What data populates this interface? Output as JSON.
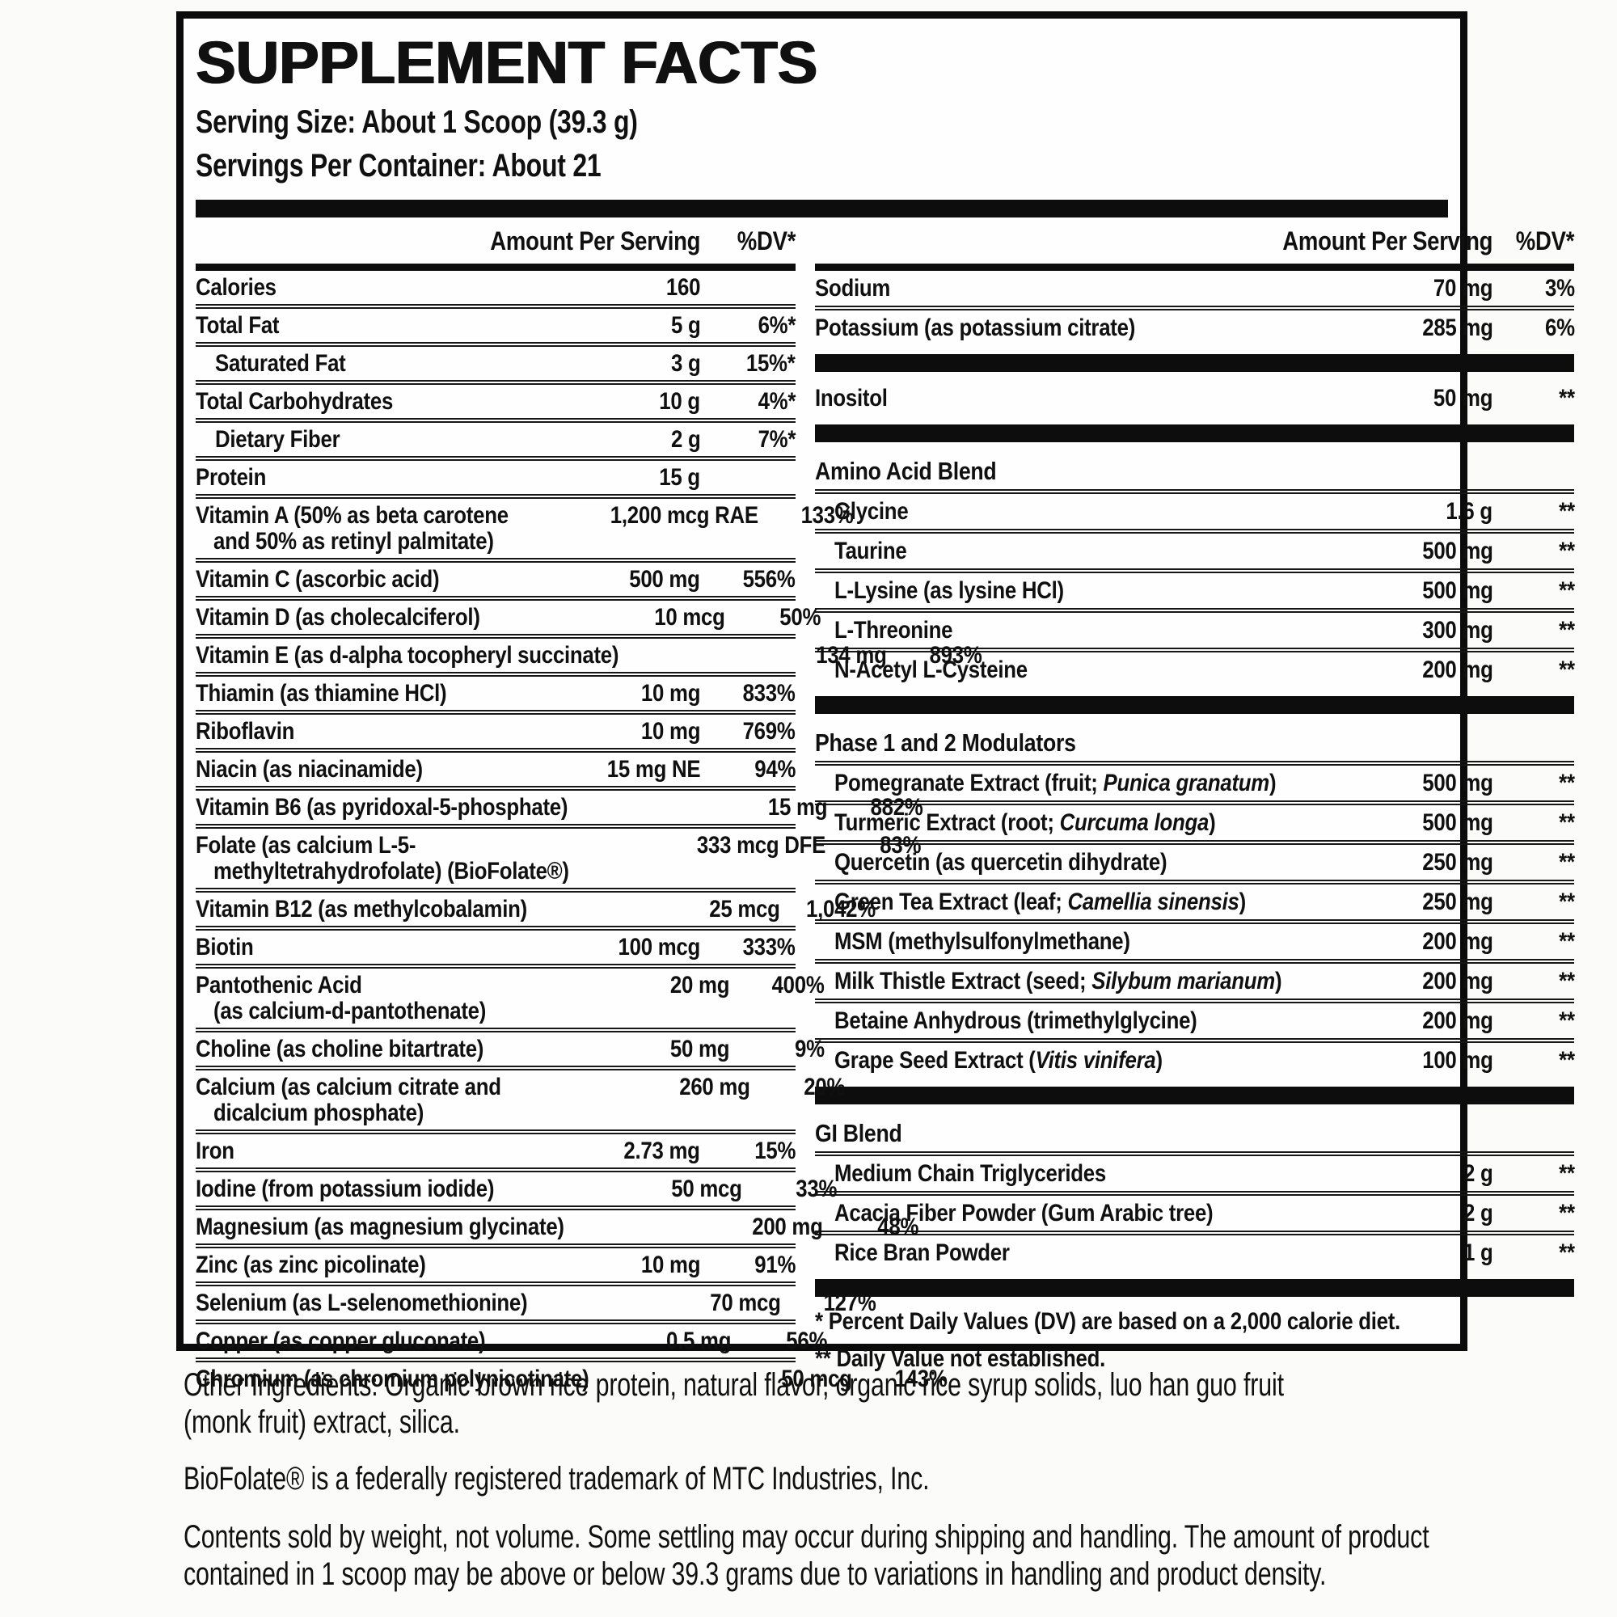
{
  "label": {
    "title": "SUPPLEMENT FACTS",
    "serving_size": "Serving Size: About 1 Scoop (39.3 g)",
    "servings_per_container": "Servings Per Container: About 21",
    "columns": {
      "amount": "Amount Per Serving",
      "dv": "%DV*"
    }
  },
  "colors": {
    "label_border": "#0b0b0b",
    "divider_bar": "#0d0d0d",
    "text": "#101010",
    "page_background": "#fbfbfa"
  },
  "panels": {
    "left": {
      "rows": [
        {
          "type": "item",
          "name": "Calories",
          "amount": "160",
          "dv": ""
        },
        {
          "type": "item",
          "name": "Total Fat",
          "amount": "5 g",
          "dv": "6%*"
        },
        {
          "type": "item",
          "name": "Saturated Fat",
          "amount": "3 g",
          "dv": "15%*",
          "indent": 1
        },
        {
          "type": "item",
          "name": "Total Carbohydrates",
          "amount": "10 g",
          "dv": "4%*"
        },
        {
          "type": "item",
          "name": "Dietary Fiber",
          "amount": "2 g",
          "dv": "7%*",
          "indent": 1
        },
        {
          "type": "item",
          "name": "Protein",
          "amount": "15 g",
          "dv": ""
        },
        {
          "type": "item",
          "name": "Vitamin A (50% as beta carotene",
          "name2": "and 50% as retinyl palmitate)",
          "amount": "1,200 mcg RAE",
          "dv": "133%"
        },
        {
          "type": "item",
          "name": "Vitamin C (ascorbic acid)",
          "amount": "500 mg",
          "dv": "556%"
        },
        {
          "type": "item",
          "name": "Vitamin D (as cholecalciferol)",
          "amount": "10 mcg",
          "dv": "50%"
        },
        {
          "type": "item",
          "name": "Vitamin E (as d-alpha tocopheryl succinate)",
          "amount": "134 mg",
          "dv": "893%"
        },
        {
          "type": "item",
          "name": "Thiamin (as thiamine HCl)",
          "amount": "10 mg",
          "dv": "833%"
        },
        {
          "type": "item",
          "name": "Riboflavin",
          "amount": "10 mg",
          "dv": "769%"
        },
        {
          "type": "item",
          "name": "Niacin (as niacinamide)",
          "amount": "15 mg NE",
          "dv": "94%"
        },
        {
          "type": "item",
          "name": "Vitamin B6 (as pyridoxal-5-phosphate)",
          "amount": "15 mg",
          "dv": "882%"
        },
        {
          "type": "item",
          "name": "Folate (as calcium L-5-",
          "name2": "methyltetrahydrofolate) (BioFolate®)",
          "amount": "333 mcg DFE",
          "dv": "83%"
        },
        {
          "type": "item",
          "name": "Vitamin B12 (as methylcobalamin)",
          "amount": "25 mcg",
          "dv": "1,042%"
        },
        {
          "type": "item",
          "name": "Biotin",
          "amount": "100 mcg",
          "dv": "333%"
        },
        {
          "type": "item",
          "name": "Pantothenic Acid",
          "name2": "(as calcium-d-pantothenate)",
          "amount": "20 mg",
          "dv": "400%"
        },
        {
          "type": "item",
          "name": "Choline (as choline bitartrate)",
          "amount": "50 mg",
          "dv": "9%"
        },
        {
          "type": "item",
          "name": "Calcium (as calcium citrate and",
          "name2": "dicalcium phosphate)",
          "amount": "260 mg",
          "dv": "20%"
        },
        {
          "type": "item",
          "name": "Iron",
          "amount": "2.73 mg",
          "dv": "15%"
        },
        {
          "type": "item",
          "name": "Iodine (from potassium iodide)",
          "amount": "50 mcg",
          "dv": "33%"
        },
        {
          "type": "item",
          "name": "Magnesium (as magnesium glycinate)",
          "amount": "200 mg",
          "dv": "48%"
        },
        {
          "type": "item",
          "name": "Zinc (as zinc picolinate)",
          "amount": "10 mg",
          "dv": "91%"
        },
        {
          "type": "item",
          "name": "Selenium (as L-selenomethionine)",
          "amount": "70 mcg",
          "dv": "127%"
        },
        {
          "type": "item",
          "name": "Copper (as copper gluconate)",
          "amount": "0.5 mg",
          "dv": "56%"
        },
        {
          "type": "item",
          "name": "Chromium (as chromium polynicotinate)",
          "amount": "50 mcg",
          "dv": "143%"
        }
      ]
    },
    "right": {
      "rows": [
        {
          "type": "item",
          "name": "Sodium",
          "amount": "70 mg",
          "dv": "3%"
        },
        {
          "type": "item",
          "name": "Potassium (as potassium citrate)",
          "amount": "285 mg",
          "dv": "6%"
        },
        {
          "type": "bar"
        },
        {
          "type": "item",
          "name": "Inositol",
          "amount": "50 mg",
          "dv": "**"
        },
        {
          "type": "bar"
        },
        {
          "type": "header",
          "name": "Amino Acid Blend"
        },
        {
          "type": "item",
          "name": "Glycine",
          "amount": "1.6 g",
          "dv": "**",
          "indent": 1
        },
        {
          "type": "item",
          "name": "Taurine",
          "amount": "500 mg",
          "dv": "**",
          "indent": 1
        },
        {
          "type": "item",
          "name": "L-Lysine (as lysine HCl)",
          "amount": "500 mg",
          "dv": "**",
          "indent": 1
        },
        {
          "type": "item",
          "name": "L-Threonine",
          "amount": "300 mg",
          "dv": "**",
          "indent": 1
        },
        {
          "type": "item",
          "name": "N-Acetyl L-Cysteine",
          "amount": "200 mg",
          "dv": "**",
          "indent": 1
        },
        {
          "type": "bar"
        },
        {
          "type": "header",
          "name": "Phase 1 and 2 Modulators"
        },
        {
          "type": "item",
          "name": "Pomegranate Extract (fruit; ",
          "name_italic": "Punica granatum",
          "name_suffix": ")",
          "amount": "500 mg",
          "dv": "**",
          "indent": 1
        },
        {
          "type": "item",
          "name": "Turmeric Extract (root; ",
          "name_italic": "Curcuma longa",
          "name_suffix": ")",
          "amount": "500 mg",
          "dv": "**",
          "indent": 1
        },
        {
          "type": "item",
          "name": "Quercetin (as quercetin dihydrate)",
          "amount": "250 mg",
          "dv": "**",
          "indent": 1
        },
        {
          "type": "item",
          "name": "Green Tea Extract (leaf; ",
          "name_italic": "Camellia sinensis",
          "name_suffix": ")",
          "amount": "250 mg",
          "dv": "**",
          "indent": 1
        },
        {
          "type": "item",
          "name": "MSM (methylsulfonylmethane)",
          "amount": "200 mg",
          "dv": "**",
          "indent": 1
        },
        {
          "type": "item",
          "name": "Milk Thistle Extract (seed; ",
          "name_italic": "Silybum marianum",
          "name_suffix": ")",
          "amount": "200 mg",
          "dv": "**",
          "indent": 1
        },
        {
          "type": "item",
          "name": "Betaine Anhydrous (trimethylglycine)",
          "amount": "200 mg",
          "dv": "**",
          "indent": 1
        },
        {
          "type": "item",
          "name": "Grape Seed Extract (",
          "name_italic": "Vitis vinifera",
          "name_suffix": ")",
          "amount": "100 mg",
          "dv": "**",
          "indent": 1
        },
        {
          "type": "bar"
        },
        {
          "type": "header",
          "name": "GI Blend"
        },
        {
          "type": "item",
          "name": "Medium Chain Triglycerides",
          "amount": "2 g",
          "dv": "**",
          "indent": 1
        },
        {
          "type": "item",
          "name": "Acacia Fiber Powder (Gum Arabic tree)",
          "amount": "2 g",
          "dv": "**",
          "indent": 1
        },
        {
          "type": "item",
          "name": "Rice Bran Powder",
          "amount": "1 g",
          "dv": "**",
          "indent": 1
        },
        {
          "type": "bar"
        },
        {
          "type": "note",
          "text": "* Percent Daily Values (DV) are based on a 2,000 calorie diet."
        },
        {
          "type": "note",
          "text": "** Daily Value not established."
        }
      ]
    }
  },
  "footer": {
    "other_ingredients_line1": "Other Ingredients: Organic brown rice protein, natural flavor, organic rice syrup solids, luo han guo fruit",
    "other_ingredients_line2": "(monk fruit) extract, silica.",
    "trademark": "BioFolate® is a federally registered trademark of MTC Industries, Inc.",
    "contents_line1": "Contents sold by weight, not volume. Some settling may occur during shipping and handling. The amount of product",
    "contents_line2": "contained in 1 scoop may be above or below 39.3 grams due to variations in handling and product density."
  }
}
